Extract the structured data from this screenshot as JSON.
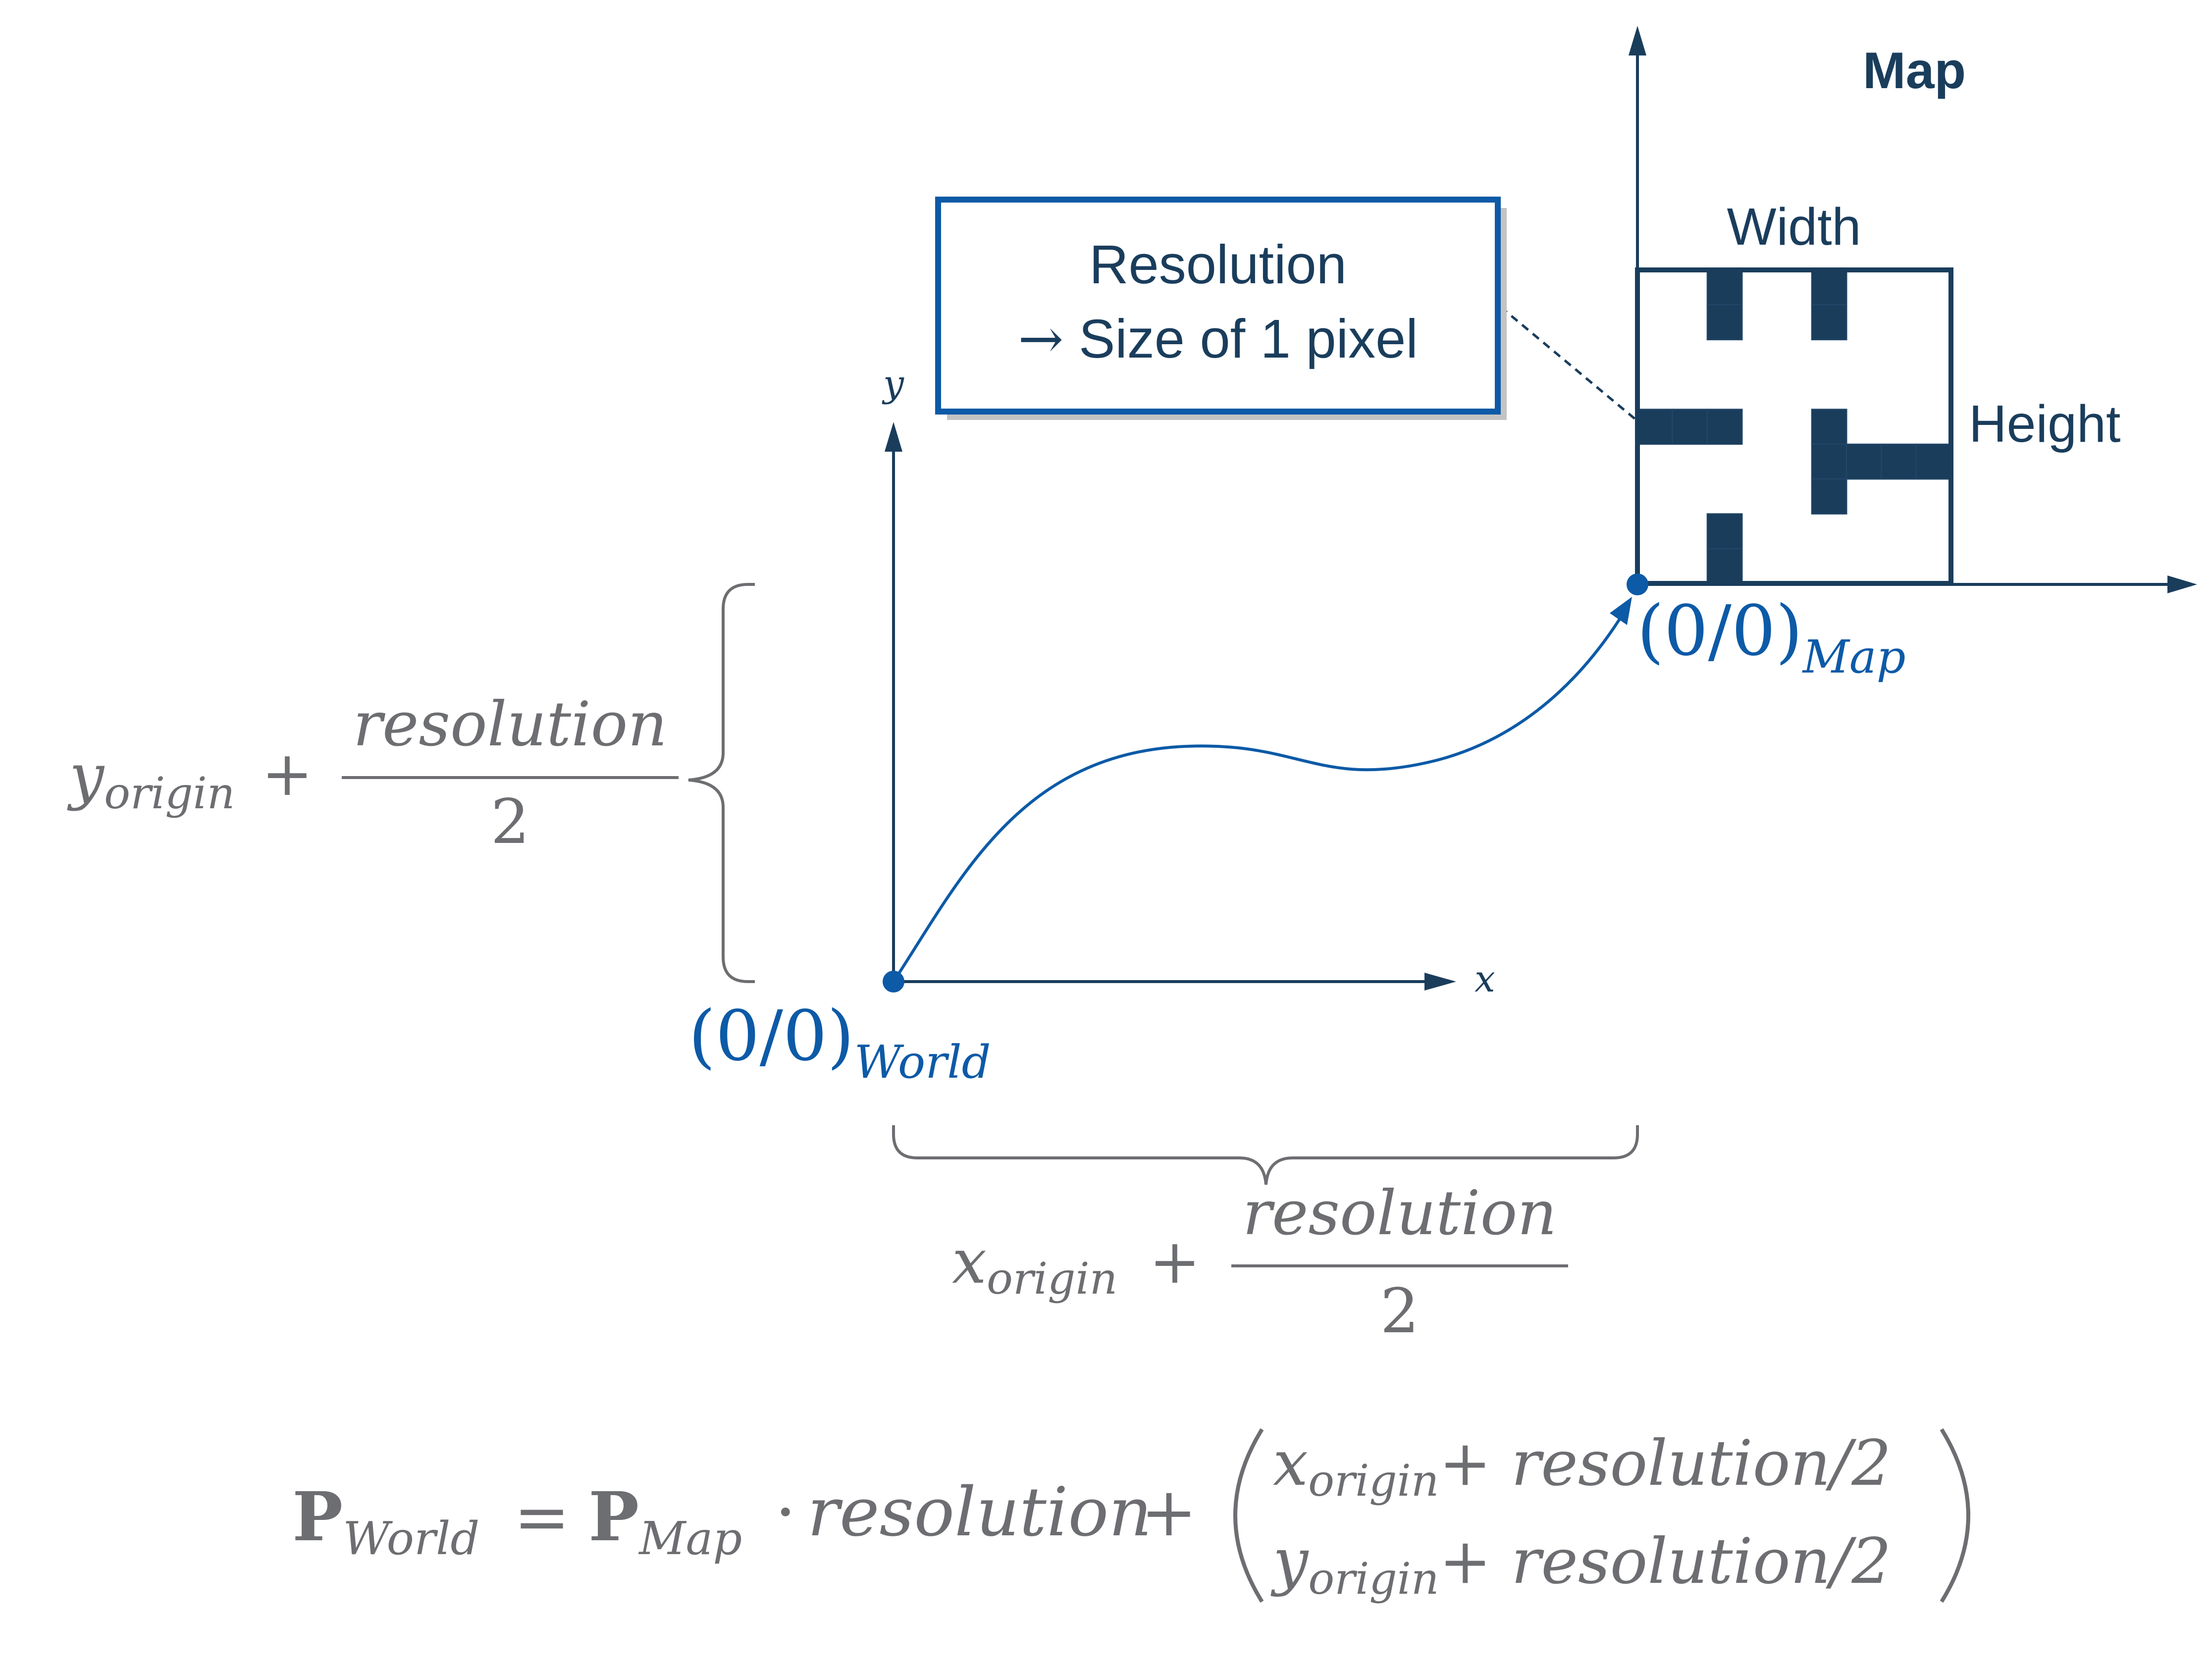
{
  "map": {
    "title": "Map",
    "width_label": "Width",
    "height_label": "Height",
    "grid_cols": 9,
    "grid_rows": 9,
    "occupied_cells": [
      [
        2,
        0
      ],
      [
        2,
        1
      ],
      [
        5,
        0
      ],
      [
        5,
        1
      ],
      [
        0,
        4
      ],
      [
        1,
        4
      ],
      [
        2,
        4
      ],
      [
        5,
        4
      ],
      [
        5,
        5
      ],
      [
        6,
        5
      ],
      [
        7,
        5
      ],
      [
        8,
        5
      ],
      [
        5,
        6
      ],
      [
        2,
        7
      ],
      [
        2,
        8
      ]
    ]
  },
  "callout": {
    "line1": "Resolution",
    "arrow_glyph": "→",
    "line2": "Size of 1 pixel"
  },
  "world_axes": {
    "x_label": "x",
    "y_label": "y"
  },
  "origins": {
    "world": {
      "base": "(0/0)",
      "sub": "World"
    },
    "map": {
      "base": "(0/0)",
      "sub": "Map"
    }
  },
  "offsets": {
    "y": {
      "var": "y",
      "sub": "origin",
      "op": "+",
      "numerator": "resolution",
      "denominator": "2"
    },
    "x": {
      "var": "x",
      "sub": "origin",
      "op": "+",
      "numerator": "resolution",
      "denominator": "2"
    }
  },
  "formula": {
    "lhs_bold": "P",
    "lhs_sub": "World",
    "eq": "=",
    "rhs_bold": "P",
    "rhs_sub": "Map",
    "dot": "·",
    "term": "resolution",
    "plus": "+",
    "vector": [
      {
        "var": "x",
        "sub": "origin",
        "rest": "+ resolution/2"
      },
      {
        "var": "y",
        "sub": "origin",
        "rest": "+ resolution/2"
      }
    ]
  },
  "colors": {
    "dark_navy": "#1a3d5c",
    "accent_blue": "#0d5aa7",
    "gray": "#6d6e71",
    "shadow": "#c3c3c3"
  }
}
